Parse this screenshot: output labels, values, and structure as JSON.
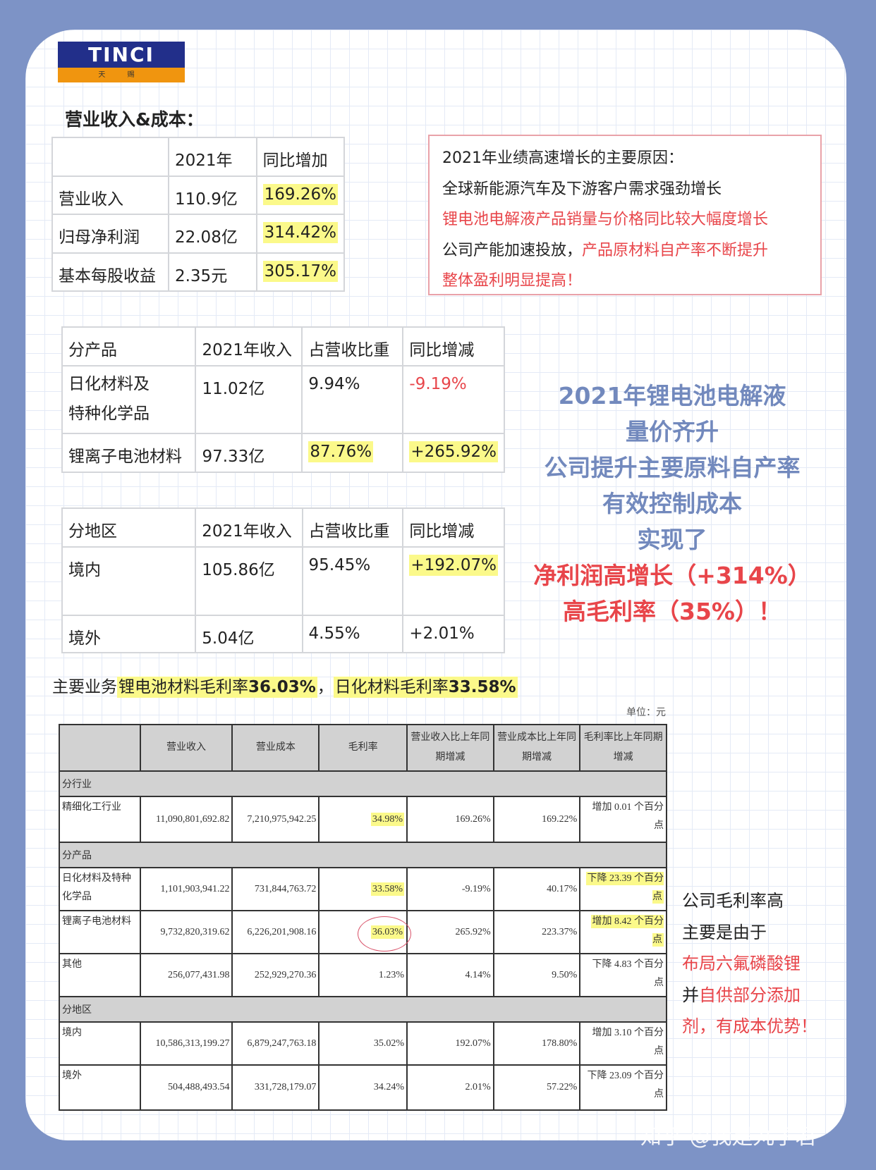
{
  "logo": {
    "brand": "TINCI",
    "sub": "天 赐"
  },
  "section1": {
    "title": "营业收入&成本：",
    "headers": [
      "",
      "2021年",
      "同比增加"
    ],
    "rows": [
      [
        "营业收入",
        "110.9亿",
        "169.26%"
      ],
      [
        "归母净利润",
        "22.08亿",
        "314.42%"
      ],
      [
        "基本每股收益",
        "2.35元",
        "305.17%"
      ]
    ]
  },
  "reasons": {
    "title": "2021年业绩高速增长的主要原因：",
    "line1": "全球新能源汽车及下游客户需求强劲增长",
    "line2": "锂电池电解液产品销量与价格同比较大幅度增长",
    "line3a": "公司产能加速投放，",
    "line3b": "产品原材料自产率不断提升",
    "line4": "整体盈利明显提高！"
  },
  "products": {
    "headers": [
      "分产品",
      "2021年收入",
      "占营收比重",
      "同比增减"
    ],
    "rows": [
      [
        "日化材料及\n特种化学品",
        "11.02亿",
        "9.94%",
        "-9.19%"
      ],
      [
        "锂离子电池材料",
        "97.33亿",
        "87.76%",
        "+265.92%"
      ]
    ]
  },
  "regions": {
    "headers": [
      "分地区",
      "2021年收入",
      "占营收比重",
      "同比增减"
    ],
    "rows": [
      [
        "境内",
        "105.86亿",
        "95.45%",
        "+192.07%"
      ],
      [
        "境外",
        "5.04亿",
        "4.55%",
        "+2.01%"
      ]
    ]
  },
  "summary": {
    "l1": "2021年锂电池电解液",
    "l2": "量价齐升",
    "l3": "公司提升主要原料自产率",
    "l4": "有效控制成本",
    "l5": "实现了",
    "l6": "净利润高增长（+314%）",
    "l7": "高毛利率（35%）！"
  },
  "margin_line": {
    "a": "主要业务",
    "b": "锂电池材料毛利率",
    "c": "36.03%",
    "d": "，",
    "e": "日化材料毛利率",
    "f": "33.58%"
  },
  "unit": "单位：元",
  "big_table": {
    "headers": [
      "",
      "营业收入",
      "营业成本",
      "毛利率",
      "营业收入比上年同期增减",
      "营业成本比上年同期增减",
      "毛利率比上年同期增减"
    ],
    "rows": [
      {
        "section": "分行业"
      },
      {
        "cells": [
          "精细化工行业",
          "11,090,801,692.82",
          "7,210,975,942.25",
          "34.98%",
          "169.26%",
          "169.22%",
          "增加 0.01 个百分点"
        ],
        "hl": [
          3
        ]
      },
      {
        "section": "分产品"
      },
      {
        "cells": [
          "日化材料及特种化学品",
          "1,101,903,941.22",
          "731,844,763.72",
          "33.58%",
          "-9.19%",
          "40.17%",
          "下降 23.39 个百分点"
        ],
        "hl": [
          3,
          6
        ]
      },
      {
        "cells": [
          "锂离子电池材料",
          "9,732,820,319.62",
          "6,226,201,908.16",
          "36.03%",
          "265.92%",
          "223.37%",
          "增加 8.42 个百分点"
        ],
        "hl": [
          3,
          6
        ]
      },
      {
        "cells": [
          "其他",
          "256,077,431.98",
          "252,929,270.36",
          "1.23%",
          "4.14%",
          "9.50%",
          "下降 4.83 个百分点"
        ],
        "hl": []
      },
      {
        "section": "分地区"
      },
      {
        "cells": [
          "境内",
          "10,586,313,199.27",
          "6,879,247,763.18",
          "35.02%",
          "192.07%",
          "178.80%",
          "增加 3.10 个百分点"
        ],
        "hl": []
      },
      {
        "cells": [
          "境外",
          "504,488,493.54",
          "331,728,179.07",
          "34.24%",
          "2.01%",
          "57.22%",
          "下降 23.09 个百分点"
        ],
        "hl": []
      }
    ]
  },
  "note": {
    "l1": "公司毛利率高",
    "l2": "主要是由于",
    "l3": "布局六氟磷酸锂",
    "l4a": "并",
    "l4b": "自供部分添加",
    "l5": "剂，有成本优势！"
  },
  "watermark": "知乎 @我是丸子君",
  "colors": {
    "background": "#7d93c6",
    "accent_blue": "#7289bd",
    "accent_red": "#e8454a",
    "highlight": "#fbf98a"
  }
}
